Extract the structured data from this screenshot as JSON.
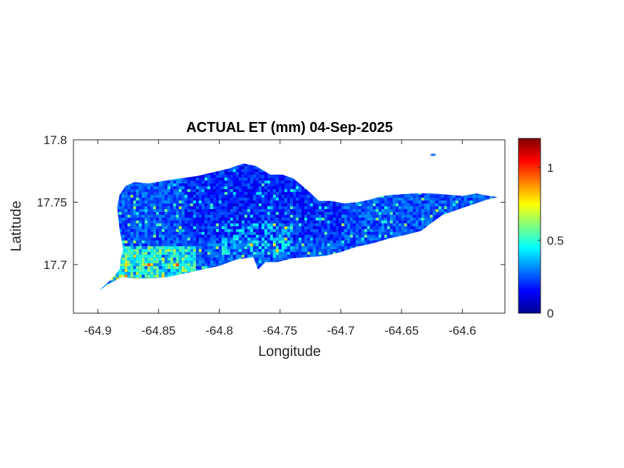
{
  "chart_data": {
    "type": "heatmap",
    "title": "ACTUAL ET (mm) 04-Sep-2025",
    "xlabel": "Longitude",
    "ylabel": "Latitude",
    "xlim": [
      -64.92,
      -64.565
    ],
    "ylim": [
      17.661,
      17.8
    ],
    "x_ticks": [
      -64.9,
      -64.85,
      -64.8,
      -64.75,
      -64.7,
      -64.65,
      -64.6
    ],
    "x_tick_labels": [
      "-64.9",
      "-64.85",
      "-64.8",
      "-64.75",
      "-64.7",
      "-64.65",
      "-64.6"
    ],
    "y_ticks": [
      17.7,
      17.75,
      17.8
    ],
    "y_tick_labels": [
      "17.7",
      "17.75",
      "17.8"
    ],
    "colorbar": {
      "colormap": "jet",
      "limits": [
        0,
        1.2
      ],
      "ticks": [
        0,
        0.5,
        1
      ],
      "tick_labels": [
        "0",
        "0.5",
        "1"
      ]
    },
    "island_outline_lonlat": [
      [
        -64.899,
        17.679
      ],
      [
        -64.889,
        17.688
      ],
      [
        -64.882,
        17.696
      ],
      [
        -64.881,
        17.705
      ],
      [
        -64.879,
        17.712
      ],
      [
        -64.882,
        17.728
      ],
      [
        -64.884,
        17.746
      ],
      [
        -64.882,
        17.756
      ],
      [
        -64.877,
        17.763
      ],
      [
        -64.87,
        17.766
      ],
      [
        -64.858,
        17.765
      ],
      [
        -64.846,
        17.767
      ],
      [
        -64.833,
        17.769
      ],
      [
        -64.818,
        17.771
      ],
      [
        -64.805,
        17.774
      ],
      [
        -64.792,
        17.777
      ],
      [
        -64.78,
        17.781
      ],
      [
        -64.77,
        17.779
      ],
      [
        -64.758,
        17.772
      ],
      [
        -64.748,
        17.772
      ],
      [
        -64.739,
        17.769
      ],
      [
        -64.728,
        17.76
      ],
      [
        -64.718,
        17.751
      ],
      [
        -64.708,
        17.751
      ],
      [
        -64.697,
        17.749
      ],
      [
        -64.686,
        17.75
      ],
      [
        -64.676,
        17.752
      ],
      [
        -64.666,
        17.755
      ],
      [
        -64.655,
        17.756
      ],
      [
        -64.64,
        17.757
      ],
      [
        -64.625,
        17.757
      ],
      [
        -64.612,
        17.756
      ],
      [
        -64.6,
        17.755
      ],
      [
        -64.589,
        17.757
      ],
      [
        -64.578,
        17.755
      ],
      [
        -64.571,
        17.754
      ],
      [
        -64.58,
        17.752
      ],
      [
        -64.592,
        17.748
      ],
      [
        -64.604,
        17.744
      ],
      [
        -64.616,
        17.74
      ],
      [
        -64.626,
        17.733
      ],
      [
        -64.634,
        17.727
      ],
      [
        -64.646,
        17.724
      ],
      [
        -64.66,
        17.721
      ],
      [
        -64.674,
        17.717
      ],
      [
        -64.688,
        17.714
      ],
      [
        -64.7,
        17.71
      ],
      [
        -64.713,
        17.707
      ],
      [
        -64.726,
        17.706
      ],
      [
        -64.74,
        17.705
      ],
      [
        -64.752,
        17.702
      ],
      [
        -64.762,
        17.702
      ],
      [
        -64.768,
        17.696
      ],
      [
        -64.772,
        17.706
      ],
      [
        -64.786,
        17.704
      ],
      [
        -64.8,
        17.699
      ],
      [
        -64.814,
        17.696
      ],
      [
        -64.828,
        17.693
      ],
      [
        -64.842,
        17.69
      ],
      [
        -64.856,
        17.689
      ],
      [
        -64.87,
        17.689
      ],
      [
        -64.88,
        17.69
      ],
      [
        -64.892,
        17.684
      ],
      [
        -64.899,
        17.679
      ]
    ],
    "islet_lonlat": [
      -64.624,
      17.788
    ]
  }
}
